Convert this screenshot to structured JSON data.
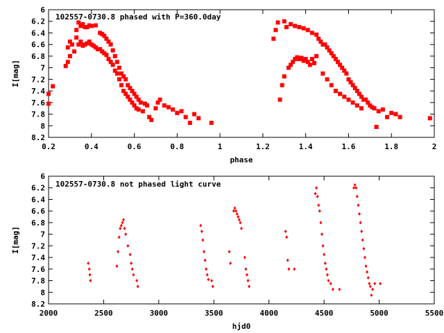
{
  "chart_data": [
    {
      "type": "scatter",
      "title": "102557-0730.8 phased with P=360.0day",
      "xlabel": "phase",
      "ylabel": "I[mag]",
      "xlim": [
        0.2,
        2.0
      ],
      "ylim": [
        8.2,
        6.0
      ],
      "y_inverted": true,
      "x_ticks": [
        "0.2",
        "0.4",
        "0.6",
        "0.8",
        "1",
        "1.2",
        "1.4",
        "1.6",
        "1.8",
        "2"
      ],
      "y_ticks": [
        "6",
        "6.2",
        "6.4",
        "6.6",
        "6.8",
        "7",
        "7.2",
        "7.4",
        "7.6",
        "7.8",
        "8",
        "8.2"
      ],
      "grid": false,
      "marker_color": "#ff0000",
      "series": [
        {
          "values": [
            [
              0.2,
              7.45
            ],
            [
              0.2,
              7.62
            ],
            [
              0.22,
              7.32
            ],
            [
              0.28,
              6.97
            ],
            [
              0.29,
              6.9
            ],
            [
              0.29,
              6.65
            ],
            [
              0.3,
              6.55
            ],
            [
              0.3,
              6.8
            ],
            [
              0.31,
              6.6
            ],
            [
              0.32,
              6.72
            ],
            [
              0.33,
              6.48
            ],
            [
              0.33,
              6.35
            ],
            [
              0.34,
              6.22
            ],
            [
              0.34,
              6.6
            ],
            [
              0.35,
              6.55
            ],
            [
              0.35,
              6.28
            ],
            [
              0.36,
              6.25
            ],
            [
              0.36,
              6.62
            ],
            [
              0.37,
              6.3
            ],
            [
              0.37,
              6.6
            ],
            [
              0.38,
              6.58
            ],
            [
              0.38,
              6.3
            ],
            [
              0.39,
              6.55
            ],
            [
              0.39,
              6.27
            ],
            [
              0.4,
              6.6
            ],
            [
              0.4,
              6.28
            ],
            [
              0.41,
              6.62
            ],
            [
              0.42,
              6.27
            ],
            [
              0.42,
              6.65
            ],
            [
              0.43,
              6.68
            ],
            [
              0.44,
              6.4
            ],
            [
              0.44,
              6.68
            ],
            [
              0.45,
              6.42
            ],
            [
              0.45,
              6.72
            ],
            [
              0.46,
              6.45
            ],
            [
              0.46,
              6.75
            ],
            [
              0.47,
              6.5
            ],
            [
              0.47,
              6.78
            ],
            [
              0.48,
              6.55
            ],
            [
              0.48,
              6.85
            ],
            [
              0.49,
              6.6
            ],
            [
              0.49,
              6.9
            ],
            [
              0.5,
              6.7
            ],
            [
              0.5,
              6.95
            ],
            [
              0.51,
              6.8
            ],
            [
              0.51,
              7.05
            ],
            [
              0.52,
              6.9
            ],
            [
              0.52,
              7.1
            ],
            [
              0.53,
              7.0
            ],
            [
              0.53,
              7.2
            ],
            [
              0.54,
              7.1
            ],
            [
              0.54,
              7.3
            ],
            [
              0.55,
              7.15
            ],
            [
              0.55,
              7.4
            ],
            [
              0.56,
              7.2
            ],
            [
              0.56,
              7.45
            ],
            [
              0.57,
              7.3
            ],
            [
              0.57,
              7.5
            ],
            [
              0.58,
              7.35
            ],
            [
              0.58,
              7.55
            ],
            [
              0.59,
              7.4
            ],
            [
              0.59,
              7.6
            ],
            [
              0.6,
              7.45
            ],
            [
              0.6,
              7.65
            ],
            [
              0.61,
              7.5
            ],
            [
              0.61,
              7.7
            ],
            [
              0.62,
              7.55
            ],
            [
              0.62,
              7.72
            ],
            [
              0.63,
              7.6
            ],
            [
              0.64,
              7.75
            ],
            [
              0.65,
              7.62
            ],
            [
              0.66,
              7.65
            ],
            [
              0.67,
              7.85
            ],
            [
              0.68,
              7.9
            ],
            [
              0.7,
              7.7
            ],
            [
              0.71,
              7.6
            ],
            [
              0.72,
              7.55
            ],
            [
              0.74,
              7.65
            ],
            [
              0.76,
              7.68
            ],
            [
              0.78,
              7.72
            ],
            [
              0.8,
              7.78
            ],
            [
              0.82,
              7.75
            ],
            [
              0.84,
              7.85
            ],
            [
              0.86,
              7.95
            ],
            [
              0.88,
              7.8
            ],
            [
              0.9,
              7.87
            ],
            [
              0.96,
              7.95
            ],
            [
              1.25,
              6.5
            ],
            [
              1.26,
              6.35
            ],
            [
              1.27,
              6.22
            ],
            [
              1.28,
              7.55
            ],
            [
              1.29,
              7.3
            ],
            [
              1.3,
              6.2
            ],
            [
              1.3,
              7.15
            ],
            [
              1.31,
              6.3
            ],
            [
              1.32,
              7.0
            ],
            [
              1.33,
              6.25
            ],
            [
              1.33,
              6.95
            ],
            [
              1.34,
              6.9
            ],
            [
              1.35,
              6.28
            ],
            [
              1.35,
              6.85
            ],
            [
              1.36,
              6.82
            ],
            [
              1.37,
              6.3
            ],
            [
              1.37,
              6.85
            ],
            [
              1.38,
              6.83
            ],
            [
              1.39,
              6.32
            ],
            [
              1.39,
              6.88
            ],
            [
              1.4,
              6.85
            ],
            [
              1.41,
              6.35
            ],
            [
              1.41,
              6.9
            ],
            [
              1.42,
              6.95
            ],
            [
              1.43,
              6.4
            ],
            [
              1.43,
              6.85
            ],
            [
              1.44,
              6.92
            ],
            [
              1.45,
              6.43
            ],
            [
              1.45,
              6.8
            ],
            [
              1.46,
              6.5
            ],
            [
              1.47,
              6.55
            ],
            [
              1.48,
              6.6
            ],
            [
              1.48,
              7.1
            ],
            [
              1.49,
              6.6
            ],
            [
              1.5,
              6.65
            ],
            [
              1.5,
              7.2
            ],
            [
              1.51,
              6.7
            ],
            [
              1.52,
              6.75
            ],
            [
              1.52,
              7.3
            ],
            [
              1.53,
              6.8
            ],
            [
              1.54,
              6.85
            ],
            [
              1.54,
              7.4
            ],
            [
              1.55,
              6.9
            ],
            [
              1.56,
              6.95
            ],
            [
              1.56,
              7.45
            ],
            [
              1.57,
              7.0
            ],
            [
              1.58,
              7.05
            ],
            [
              1.58,
              7.5
            ],
            [
              1.59,
              7.1
            ],
            [
              1.6,
              7.2
            ],
            [
              1.6,
              7.55
            ],
            [
              1.61,
              7.25
            ],
            [
              1.62,
              7.3
            ],
            [
              1.62,
              7.6
            ],
            [
              1.63,
              7.35
            ],
            [
              1.64,
              7.4
            ],
            [
              1.64,
              7.65
            ],
            [
              1.65,
              7.45
            ],
            [
              1.66,
              7.5
            ],
            [
              1.66,
              7.7
            ],
            [
              1.67,
              7.55
            ],
            [
              1.68,
              7.55
            ],
            [
              1.69,
              7.6
            ],
            [
              1.7,
              7.65
            ],
            [
              1.71,
              7.68
            ],
            [
              1.72,
              7.7
            ],
            [
              1.73,
              8.02
            ],
            [
              1.74,
              7.75
            ],
            [
              1.76,
              7.72
            ],
            [
              1.78,
              7.85
            ],
            [
              1.8,
              7.78
            ],
            [
              1.82,
              7.8
            ],
            [
              1.84,
              7.85
            ],
            [
              1.98,
              7.87
            ]
          ]
        }
      ]
    },
    {
      "type": "scatter",
      "title": "102557-0730.8 not phased light curve",
      "xlabel": "hjd0",
      "ylabel": "I[mag]",
      "xlim": [
        2000,
        5500
      ],
      "ylim": [
        8.2,
        6.0
      ],
      "y_inverted": true,
      "x_ticks": [
        "2000",
        "2500",
        "3000",
        "3500",
        "4000",
        "4500",
        "5000",
        "5500"
      ],
      "y_ticks": [
        "6",
        "6.2",
        "6.4",
        "6.6",
        "6.8",
        "7",
        "7.2",
        "7.4",
        "7.6",
        "7.8",
        "8",
        "8.2"
      ],
      "grid": false,
      "marker_color": "#ff0000",
      "series": [
        {
          "values": [
            [
              2360,
              7.5
            ],
            [
              2370,
              7.6
            ],
            [
              2375,
              7.7
            ],
            [
              2380,
              7.8
            ],
            [
              2620,
              7.55
            ],
            [
              2630,
              7.3
            ],
            [
              2640,
              7.05
            ],
            [
              2650,
              6.9
            ],
            [
              2660,
              6.85
            ],
            [
              2670,
              6.8
            ],
            [
              2680,
              6.75
            ],
            [
              2690,
              6.9
            ],
            [
              2700,
              7.0
            ],
            [
              2720,
              7.2
            ],
            [
              2740,
              7.35
            ],
            [
              2750,
              7.5
            ],
            [
              2760,
              7.6
            ],
            [
              2770,
              7.7
            ],
            [
              2800,
              7.8
            ],
            [
              2810,
              7.9
            ],
            [
              3380,
              6.85
            ],
            [
              3390,
              6.95
            ],
            [
              3400,
              7.1
            ],
            [
              3410,
              7.3
            ],
            [
              3420,
              7.45
            ],
            [
              3430,
              7.6
            ],
            [
              3440,
              7.7
            ],
            [
              3450,
              7.78
            ],
            [
              3480,
              7.8
            ],
            [
              3490,
              7.9
            ],
            [
              3680,
              6.6
            ],
            [
              3690,
              6.55
            ],
            [
              3700,
              6.6
            ],
            [
              3710,
              6.65
            ],
            [
              3720,
              6.7
            ],
            [
              3730,
              6.75
            ],
            [
              3740,
              6.8
            ],
            [
              3750,
              6.9
            ],
            [
              3640,
              7.3
            ],
            [
              3650,
              7.5
            ],
            [
              3780,
              7.4
            ],
            [
              3790,
              7.6
            ],
            [
              3800,
              7.7
            ],
            [
              3810,
              7.8
            ],
            [
              3820,
              7.9
            ],
            [
              4150,
              6.95
            ],
            [
              4160,
              7.05
            ],
            [
              4170,
              7.45
            ],
            [
              4180,
              7.6
            ],
            [
              4230,
              7.6
            ],
            [
              4420,
              6.3
            ],
            [
              4430,
              6.2
            ],
            [
              4440,
              6.35
            ],
            [
              4450,
              6.5
            ],
            [
              4460,
              6.6
            ],
            [
              4470,
              6.8
            ],
            [
              4480,
              7.0
            ],
            [
              4490,
              7.2
            ],
            [
              4500,
              7.35
            ],
            [
              4510,
              7.5
            ],
            [
              4520,
              7.6
            ],
            [
              4530,
              7.7
            ],
            [
              4540,
              7.8
            ],
            [
              4560,
              7.85
            ],
            [
              4580,
              7.95
            ],
            [
              4640,
              7.95
            ],
            [
              4770,
              6.2
            ],
            [
              4780,
              6.15
            ],
            [
              4790,
              6.2
            ],
            [
              4800,
              6.35
            ],
            [
              4810,
              6.5
            ],
            [
              4820,
              6.65
            ],
            [
              4830,
              6.8
            ],
            [
              4840,
              6.95
            ],
            [
              4850,
              7.1
            ],
            [
              4860,
              7.25
            ],
            [
              4870,
              7.4
            ],
            [
              4880,
              7.55
            ],
            [
              4890,
              7.65
            ],
            [
              4900,
              7.75
            ],
            [
              4910,
              7.85
            ],
            [
              4920,
              7.9
            ],
            [
              4930,
              8.05
            ],
            [
              4940,
              7.95
            ],
            [
              4960,
              7.85
            ],
            [
              5010,
              7.85
            ]
          ]
        }
      ]
    }
  ]
}
